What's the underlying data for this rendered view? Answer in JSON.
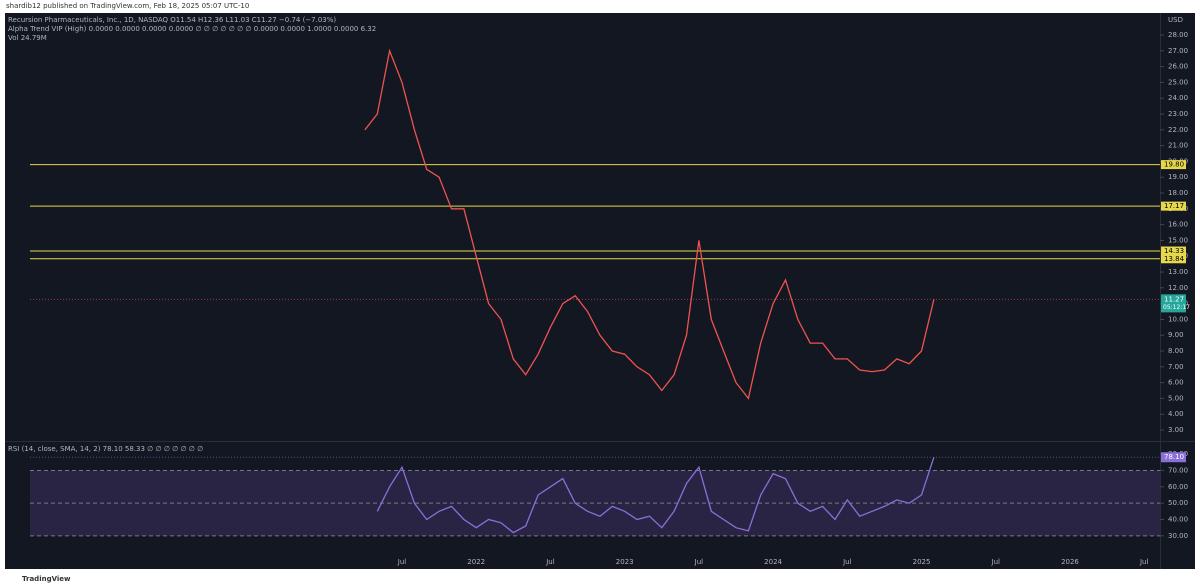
{
  "header": "shardib12 published on TradingView.com, Feb 18, 2025 05:07 UTC-10",
  "footer": "TradingView",
  "chart_data": [
    {
      "type": "line",
      "currency": "USD",
      "legend_lines": [
        "Alpha Trend VIP (High) 0.0000 0.0000 0.0000 0.0000 ∅ ∅ ∅ ∅ ∅ ∅ ∅ 0.0000 0.0000 1.0000 0.0000 6.32",
        "Vol 24.79M"
      ],
      "x": [
        "2021-04",
        "2021-05",
        "2021-06",
        "2021-07",
        "2021-08",
        "2021-09",
        "2021-10",
        "2021-11",
        "2021-12",
        "2022-01",
        "2022-02",
        "2022-03",
        "2022-04",
        "2022-05",
        "2022-06",
        "2022-07",
        "2022-08",
        "2022-09",
        "2022-10",
        "2022-11",
        "2022-12",
        "2023-01",
        "2023-02",
        "2023-03",
        "2023-04",
        "2023-05",
        "2023-06",
        "2023-07",
        "2023-08",
        "2023-09",
        "2023-10",
        "2023-11",
        "2023-12",
        "2024-01",
        "2024-02",
        "2024-03",
        "2024-04",
        "2024-05",
        "2024-06",
        "2024-07",
        "2024-08",
        "2024-09",
        "2024-10",
        "2024-11",
        "2024-12",
        "2025-01",
        "2025-02"
      ],
      "series": [
        {
          "name": "Recursion Pharmaceuticals, Inc., 1D, NASDAQ O11.54 H12.36 L11.03 C11.27 −0.74 (−7.03%)",
          "color": "#ef5350",
          "values": [
            22,
            23,
            27,
            25,
            22,
            19.5,
            19,
            17,
            17,
            14,
            11,
            10,
            7.5,
            6.5,
            7.8,
            9.5,
            11,
            11.5,
            10.5,
            9,
            8,
            7.8,
            7,
            6.5,
            5.5,
            6.5,
            9,
            15,
            10,
            8,
            6,
            5,
            8.5,
            11,
            12.5,
            10,
            8.5,
            8.5,
            7.5,
            7.5,
            6.8,
            6.7,
            6.8,
            7.5,
            7.2,
            8,
            11.27
          ]
        }
      ],
      "last_label": "11.27",
      "countdown": "05:12:17",
      "ylim": [
        2.37,
        29.33
      ],
      "yticks": [
        {
          "value": 3,
          "label": "3.00"
        },
        {
          "value": 4,
          "label": "4.00"
        },
        {
          "value": 5,
          "label": "5.00"
        },
        {
          "value": 6,
          "label": "6.00"
        },
        {
          "value": 7,
          "label": "7.00"
        },
        {
          "value": 8,
          "label": "8.00"
        },
        {
          "value": 9,
          "label": "9.00"
        },
        {
          "value": 10,
          "label": "10.00"
        },
        {
          "value": 11,
          "label": "11.00"
        },
        {
          "value": 12,
          "label": "12.00"
        },
        {
          "value": 13,
          "label": "13.00"
        },
        {
          "value": 14,
          "label": "14.00"
        },
        {
          "value": 15,
          "label": "15.00"
        },
        {
          "value": 16,
          "label": "16.00"
        },
        {
          "value": 17,
          "label": "17.00"
        },
        {
          "value": 18,
          "label": "18.00"
        },
        {
          "value": 19,
          "label": "19.00"
        },
        {
          "value": 20,
          "label": "20.00"
        },
        {
          "value": 21,
          "label": "21.00"
        },
        {
          "value": 22,
          "label": "22.00"
        },
        {
          "value": 23,
          "label": "23.00"
        },
        {
          "value": 24,
          "label": "24.00"
        },
        {
          "value": 25,
          "label": "25.00"
        },
        {
          "value": 26,
          "label": "26.00"
        },
        {
          "value": 27,
          "label": "27.00"
        },
        {
          "value": 28,
          "label": "28.00"
        }
      ],
      "levels": [
        {
          "value": 19.8,
          "label": "19.80"
        },
        {
          "value": 17.17,
          "label": "17.17"
        },
        {
          "value": 14.33,
          "label": "14.33"
        },
        {
          "value": 13.84,
          "label": "13.84"
        }
      ],
      "level_color": "#e6d84a"
    },
    {
      "type": "line",
      "title": "RSI (14, close, SMA, 14, 2) 78.10 58.33 ∅ ∅ ∅ ∅ ∅ ∅ ∅",
      "x": [
        "2021-04",
        "2021-05",
        "2021-06",
        "2021-07",
        "2021-08",
        "2021-09",
        "2021-10",
        "2021-11",
        "2021-12",
        "2022-01",
        "2022-02",
        "2022-03",
        "2022-04",
        "2022-05",
        "2022-06",
        "2022-07",
        "2022-08",
        "2022-09",
        "2022-10",
        "2022-11",
        "2022-12",
        "2023-01",
        "2023-02",
        "2023-03",
        "2023-04",
        "2023-05",
        "2023-06",
        "2023-07",
        "2023-08",
        "2023-09",
        "2023-10",
        "2023-11",
        "2023-12",
        "2024-01",
        "2024-02",
        "2024-03",
        "2024-04",
        "2024-05",
        "2024-06",
        "2024-07",
        "2024-08",
        "2024-09",
        "2024-10",
        "2024-11",
        "2024-12",
        "2025-01",
        "2025-02"
      ],
      "series": [
        {
          "name": "RSI",
          "color": "#8a6fd8",
          "values": [
            null,
            45,
            60,
            72,
            50,
            40,
            45,
            48,
            40,
            35,
            40,
            38,
            32,
            36,
            55,
            60,
            65,
            50,
            45,
            42,
            48,
            45,
            40,
            42,
            35,
            45,
            62,
            72,
            45,
            40,
            35,
            33,
            55,
            68,
            65,
            50,
            45,
            48,
            40,
            52,
            42,
            45,
            48,
            52,
            50,
            55,
            78.1
          ]
        }
      ],
      "last_label": "78.10",
      "ylim": [
        19.5,
        86.2
      ],
      "yticks": [
        {
          "value": 30,
          "label": "30.00"
        },
        {
          "value": 40,
          "label": "40.00"
        },
        {
          "value": 50,
          "label": "50.00"
        },
        {
          "value": 60,
          "label": "60.00"
        },
        {
          "value": 70,
          "label": "70.00"
        },
        {
          "value": 80,
          "label": "80.00"
        }
      ],
      "levels": [
        70,
        50,
        30
      ],
      "band_color": "#2a2444",
      "xticks": [
        {
          "value": "2021-07",
          "label": "Jul"
        },
        {
          "value": "2022-01",
          "label": "2022"
        },
        {
          "value": "2022-07",
          "label": "Jul"
        },
        {
          "value": "2023-01",
          "label": "2023"
        },
        {
          "value": "2023-07",
          "label": "Jul"
        },
        {
          "value": "2024-01",
          "label": "2024"
        },
        {
          "value": "2024-07",
          "label": "Jul"
        },
        {
          "value": "2025-01",
          "label": "2025"
        },
        {
          "value": "2025-07",
          "label": "Jul"
        },
        {
          "value": "2026-01",
          "label": "2026"
        },
        {
          "value": "2026-07",
          "label": "Jul"
        }
      ]
    }
  ]
}
